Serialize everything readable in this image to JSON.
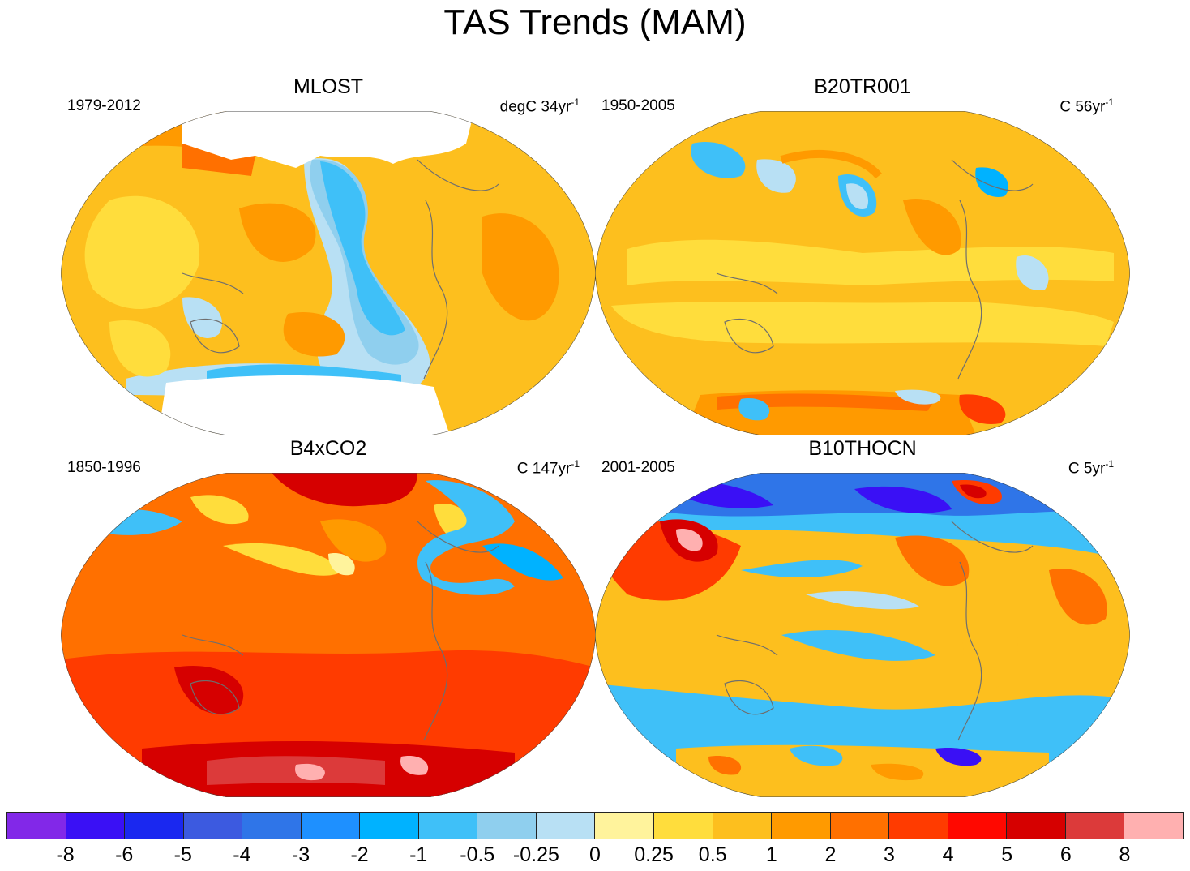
{
  "title": "TAS Trends (MAM)",
  "panels": [
    {
      "title": "MLOST",
      "period": "1979-2012",
      "units_prefix": "degC 34yr",
      "units_exp": "-1"
    },
    {
      "title": "B20TR001",
      "period": "1950-2005",
      "units_prefix": "C 56yr",
      "units_exp": "-1"
    },
    {
      "title": "B4xCO2",
      "period": "1850-1996",
      "units_prefix": "C 147yr",
      "units_exp": "-1"
    },
    {
      "title": "B10THOCN",
      "period": "2001-2005",
      "units_prefix": "C 5yr",
      "units_exp": "-1"
    }
  ],
  "colorbar": {
    "labels": [
      "-8",
      "-6",
      "-5",
      "-4",
      "-3",
      "-2",
      "-1",
      "-0.5",
      "-0.25",
      "0",
      "0.25",
      "0.5",
      "1",
      "2",
      "3",
      "4",
      "5",
      "6",
      "8"
    ],
    "colors": [
      "#8228e8",
      "#3a10f5",
      "#1a28f0",
      "#3c5ae0",
      "#2f75e8",
      "#1e90ff",
      "#00b2ff",
      "#3fc0f8",
      "#8fcfee",
      "#b8e0f4",
      "#fff39c",
      "#ffdd3c",
      "#fdbf1e",
      "#ff9a00",
      "#ff7000",
      "#ff3b00",
      "#ff0800",
      "#d60000",
      "#dc3a3a",
      "#ffb0b0"
    ]
  },
  "palette": {
    "coast": "#6e6e6e",
    "warm_base": "#fdbf1e",
    "warm_light": "#ffdd3c",
    "warm_mid": "#ff9a00",
    "warm_strong": "#ff7000",
    "hot": "#ff3b00",
    "very_hot": "#d60000",
    "cool_light": "#b8e0f4",
    "cool": "#3fc0f8",
    "cold": "#00b2ff",
    "very_cold": "#2f75e8",
    "deep_cold": "#3a10f5",
    "pink": "#ffb0b0"
  }
}
